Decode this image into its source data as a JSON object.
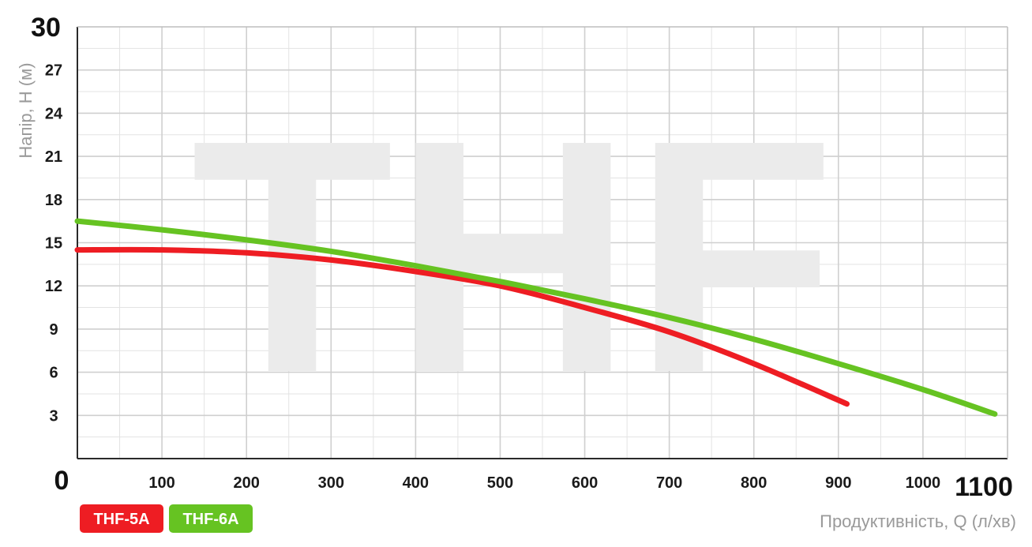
{
  "chart_data": {
    "type": "line",
    "xlabel": "Продуктивність, Q (л/хв)",
    "ylabel": "Напір, Н (м)",
    "xlim": [
      0,
      1100
    ],
    "ylim": [
      0,
      30
    ],
    "x_ticks": [
      "0",
      "100",
      "200",
      "300",
      "400",
      "500",
      "600",
      "700",
      "800",
      "900",
      "1000",
      "1100"
    ],
    "y_ticks": [
      "3",
      "6",
      "9",
      "12",
      "15",
      "18",
      "21",
      "24",
      "27",
      "30"
    ],
    "grid": true,
    "watermark": "THF",
    "legend_position": "bottom-left",
    "series": [
      {
        "name": "THF-5A",
        "color": "#ee1d23",
        "points": [
          [
            0,
            14.5
          ],
          [
            100,
            14.5
          ],
          [
            200,
            14.3
          ],
          [
            300,
            13.8
          ],
          [
            400,
            13.0
          ],
          [
            500,
            12.0
          ],
          [
            600,
            10.5
          ],
          [
            700,
            8.8
          ],
          [
            800,
            6.6
          ],
          [
            910,
            3.8
          ]
        ]
      },
      {
        "name": "THF-6A",
        "color": "#66c322",
        "points": [
          [
            0,
            16.5
          ],
          [
            100,
            15.9
          ],
          [
            200,
            15.2
          ],
          [
            300,
            14.4
          ],
          [
            400,
            13.4
          ],
          [
            500,
            12.3
          ],
          [
            600,
            11.1
          ],
          [
            700,
            9.8
          ],
          [
            800,
            8.3
          ],
          [
            900,
            6.6
          ],
          [
            1000,
            4.8
          ],
          [
            1085,
            3.1
          ]
        ]
      }
    ]
  }
}
